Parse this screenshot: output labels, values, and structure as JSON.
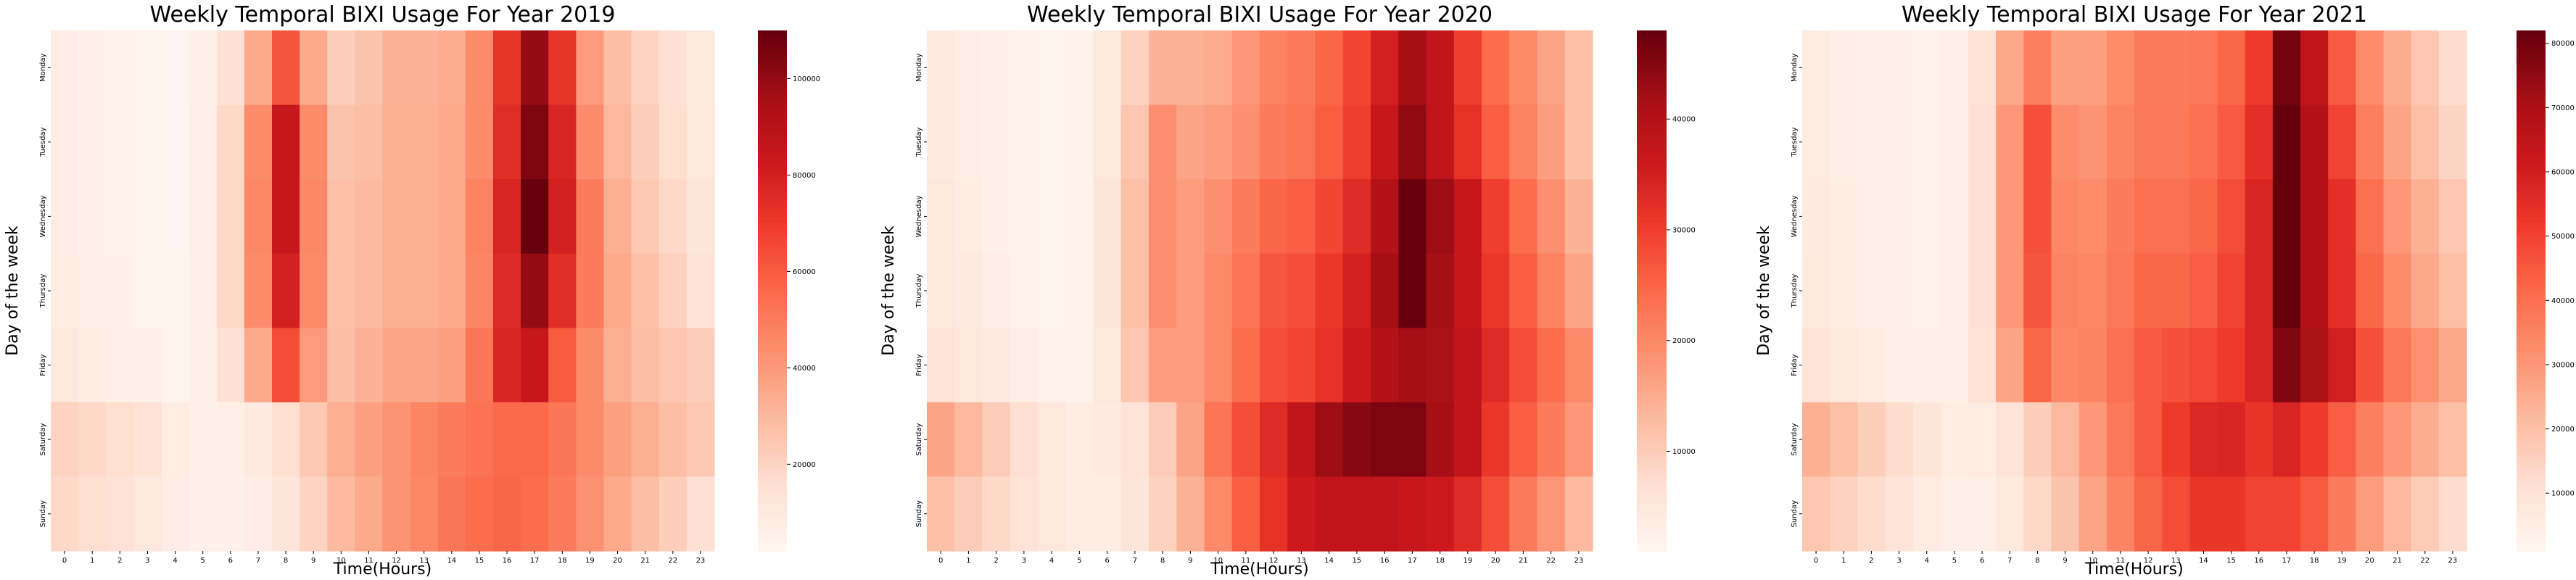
{
  "page": {
    "background": "#ffffff"
  },
  "chart_data": [
    {
      "type": "heatmap",
      "title": "Weekly Temporal BIXI Usage For Year 2019",
      "xlabel": "Time(Hours)",
      "ylabel": "Day of the week",
      "x_tick_labels": [
        "0",
        "1",
        "2",
        "3",
        "4",
        "5",
        "6",
        "7",
        "8",
        "9",
        "10",
        "11",
        "12",
        "13",
        "14",
        "15",
        "16",
        "17",
        "18",
        "19",
        "20",
        "21",
        "22",
        "23"
      ],
      "y_tick_labels": [
        "Monday",
        "Tuesday",
        "Wednesday",
        "Thursday",
        "Friday",
        "Saturday",
        "Sunday"
      ],
      "colormap": "Reds",
      "colormap_stops": [
        "#fff5f0",
        "#fee0d2",
        "#fcbba1",
        "#fc9272",
        "#fb6a4a",
        "#ef3b2c",
        "#cb181d",
        "#a50f15",
        "#67000d"
      ],
      "zlim": [
        2000,
        110000
      ],
      "colorbar_ticks": [
        20000,
        40000,
        60000,
        80000,
        100000
      ],
      "values": [
        [
          7000,
          5000,
          4000,
          3000,
          2500,
          5000,
          15000,
          35000,
          62000,
          35000,
          22000,
          26000,
          32000,
          32000,
          34000,
          45000,
          72000,
          100000,
          72000,
          40000,
          28000,
          20000,
          15000,
          10000
        ],
        [
          7000,
          5000,
          4000,
          3000,
          2500,
          6000,
          18000,
          45000,
          85000,
          45000,
          26000,
          28000,
          33000,
          33000,
          35000,
          45000,
          75000,
          105000,
          78000,
          45000,
          30000,
          22000,
          16000,
          11000
        ],
        [
          7000,
          5000,
          4000,
          3000,
          2500,
          6000,
          18000,
          46000,
          85000,
          46000,
          27000,
          29000,
          33000,
          33000,
          35000,
          48000,
          78000,
          110000,
          80000,
          50000,
          33000,
          24000,
          18000,
          12000
        ],
        [
          8000,
          6000,
          4500,
          3500,
          3000,
          6000,
          18000,
          45000,
          80000,
          45000,
          27000,
          29000,
          33000,
          33000,
          35000,
          47000,
          76000,
          100000,
          75000,
          50000,
          35000,
          27000,
          21000,
          14000
        ],
        [
          11000,
          8000,
          6000,
          4500,
          3000,
          6000,
          15000,
          35000,
          65000,
          40000,
          28000,
          32000,
          36000,
          36000,
          38000,
          52000,
          78000,
          85000,
          60000,
          45000,
          33000,
          28000,
          25000,
          22000
        ],
        [
          20000,
          18000,
          16000,
          14000,
          8000,
          5500,
          6000,
          9000,
          16000,
          24000,
          33000,
          38000,
          42000,
          47000,
          50000,
          53000,
          56000,
          56000,
          52000,
          45000,
          38000,
          33000,
          28000,
          24000
        ],
        [
          18000,
          16000,
          14000,
          11000,
          7000,
          4500,
          4500,
          7000,
          12000,
          20000,
          29000,
          35000,
          42000,
          46000,
          52000,
          55000,
          57000,
          55000,
          50000,
          43000,
          35000,
          28000,
          22000,
          15000
        ]
      ]
    },
    {
      "type": "heatmap",
      "title": "Weekly Temporal BIXI Usage For Year 2020",
      "xlabel": "Time(Hours)",
      "ylabel": "Day of the week",
      "x_tick_labels": [
        "0",
        "1",
        "2",
        "3",
        "4",
        "5",
        "6",
        "7",
        "8",
        "9",
        "10",
        "11",
        "12",
        "13",
        "14",
        "15",
        "16",
        "17",
        "18",
        "19",
        "20",
        "21",
        "22",
        "23"
      ],
      "y_tick_labels": [
        "Monday",
        "Tuesday",
        "Wednesday",
        "Thursday",
        "Friday",
        "Saturday",
        "Sunday"
      ],
      "colormap": "Reds",
      "colormap_stops": [
        "#fff5f0",
        "#fee0d2",
        "#fcbba1",
        "#fc9272",
        "#fb6a4a",
        "#ef3b2c",
        "#cb181d",
        "#a50f15",
        "#67000d"
      ],
      "zlim": [
        1000,
        48000
      ],
      "colorbar_ticks": [
        10000,
        20000,
        30000,
        40000
      ],
      "values": [
        [
          4000,
          3000,
          2500,
          2000,
          1500,
          2000,
          4500,
          9000,
          14000,
          14000,
          15000,
          18000,
          21000,
          22000,
          25000,
          29000,
          35000,
          42000,
          38000,
          30000,
          24000,
          20000,
          16000,
          12000
        ],
        [
          4000,
          3000,
          2500,
          2000,
          1500,
          2000,
          5000,
          11000,
          19000,
          16000,
          17000,
          19000,
          22000,
          23000,
          26000,
          30000,
          37000,
          44000,
          38000,
          32000,
          26000,
          21000,
          17000,
          12000
        ],
        [
          4500,
          3500,
          2500,
          2000,
          1500,
          2000,
          5500,
          12000,
          19000,
          17000,
          19000,
          22000,
          25000,
          26000,
          29000,
          33000,
          40000,
          48000,
          43000,
          37000,
          30000,
          24000,
          19000,
          14000
        ],
        [
          5000,
          4000,
          3000,
          2000,
          1500,
          2000,
          5500,
          12000,
          19000,
          17000,
          20000,
          23000,
          27000,
          28000,
          31000,
          35000,
          42000,
          48000,
          42000,
          37000,
          31000,
          26000,
          21000,
          16000
        ],
        [
          6000,
          5000,
          4000,
          3000,
          2000,
          2000,
          5000,
          11000,
          17000,
          17000,
          20000,
          24000,
          28000,
          29000,
          32000,
          36000,
          40000,
          42000,
          41000,
          38000,
          33000,
          28000,
          24000,
          20000
        ],
        [
          16000,
          13000,
          10000,
          7000,
          5000,
          3500,
          4000,
          6000,
          10000,
          16000,
          23000,
          28000,
          33000,
          38000,
          43000,
          45000,
          46000,
          46000,
          42000,
          38000,
          31000,
          26000,
          22000,
          18000
        ],
        [
          12000,
          10000,
          8000,
          6000,
          4500,
          3500,
          3500,
          5500,
          9000,
          14000,
          20000,
          26000,
          32000,
          36000,
          38000,
          38000,
          38000,
          37000,
          36000,
          33000,
          28000,
          22000,
          18000,
          13000
        ]
      ]
    },
    {
      "type": "heatmap",
      "title": "Weekly Temporal BIXI Usage For Year 2021",
      "xlabel": "Time(Hours)",
      "ylabel": "Day of the week",
      "x_tick_labels": [
        "0",
        "1",
        "2",
        "3",
        "4",
        "5",
        "6",
        "7",
        "8",
        "9",
        "10",
        "11",
        "12",
        "13",
        "14",
        "15",
        "16",
        "17",
        "18",
        "19",
        "20",
        "21",
        "22",
        "23"
      ],
      "y_tick_labels": [
        "Monday",
        "Tuesday",
        "Wednesday",
        "Thursday",
        "Friday",
        "Saturday",
        "Sunday"
      ],
      "colormap": "Reds",
      "colormap_stops": [
        "#fff5f0",
        "#fee0d2",
        "#fcbba1",
        "#fc9272",
        "#fb6a4a",
        "#ef3b2c",
        "#cb181d",
        "#a50f15",
        "#67000d"
      ],
      "zlim": [
        1000,
        82000
      ],
      "colorbar_ticks": [
        10000,
        20000,
        30000,
        40000,
        50000,
        60000,
        70000,
        80000
      ],
      "values": [
        [
          6000,
          4500,
          3500,
          3000,
          2500,
          4000,
          10000,
          26000,
          36000,
          28000,
          28000,
          33000,
          37000,
          37000,
          38000,
          42000,
          52000,
          80000,
          65000,
          45000,
          33000,
          25000,
          18000,
          12000
        ],
        [
          6000,
          4500,
          3500,
          3000,
          2500,
          4000,
          11000,
          30000,
          47000,
          33000,
          31000,
          35000,
          38000,
          38000,
          40000,
          45000,
          55000,
          82000,
          68000,
          50000,
          36000,
          27000,
          20000,
          14000
        ],
        [
          6500,
          5000,
          4000,
          3000,
          2500,
          4000,
          11000,
          30000,
          47000,
          34000,
          33000,
          37000,
          40000,
          40000,
          42000,
          48000,
          58000,
          82000,
          68000,
          55000,
          40000,
          30000,
          24000,
          18000
        ],
        [
          7000,
          5500,
          4000,
          3000,
          2500,
          4000,
          11000,
          30000,
          46000,
          35000,
          34000,
          38000,
          42000,
          42000,
          44000,
          50000,
          58000,
          82000,
          68000,
          55000,
          42000,
          33000,
          26000,
          20000
        ],
        [
          9000,
          7000,
          5500,
          4000,
          3000,
          4000,
          10000,
          27000,
          42000,
          34000,
          35000,
          40000,
          45000,
          47000,
          49000,
          52000,
          58000,
          78000,
          70000,
          60000,
          47000,
          38000,
          32000,
          26000
        ],
        [
          24000,
          20000,
          16000,
          12000,
          8000,
          5000,
          6000,
          9000,
          16000,
          22000,
          30000,
          38000,
          45000,
          52000,
          57000,
          58000,
          54000,
          58000,
          52000,
          44000,
          36000,
          30000,
          25000,
          20000
        ],
        [
          18000,
          15000,
          12000,
          9000,
          6000,
          4000,
          4000,
          7000,
          13000,
          19000,
          27000,
          35000,
          43000,
          48000,
          53000,
          53000,
          50000,
          50000,
          45000,
          37000,
          29000,
          22000,
          17000,
          12000
        ]
      ]
    }
  ]
}
